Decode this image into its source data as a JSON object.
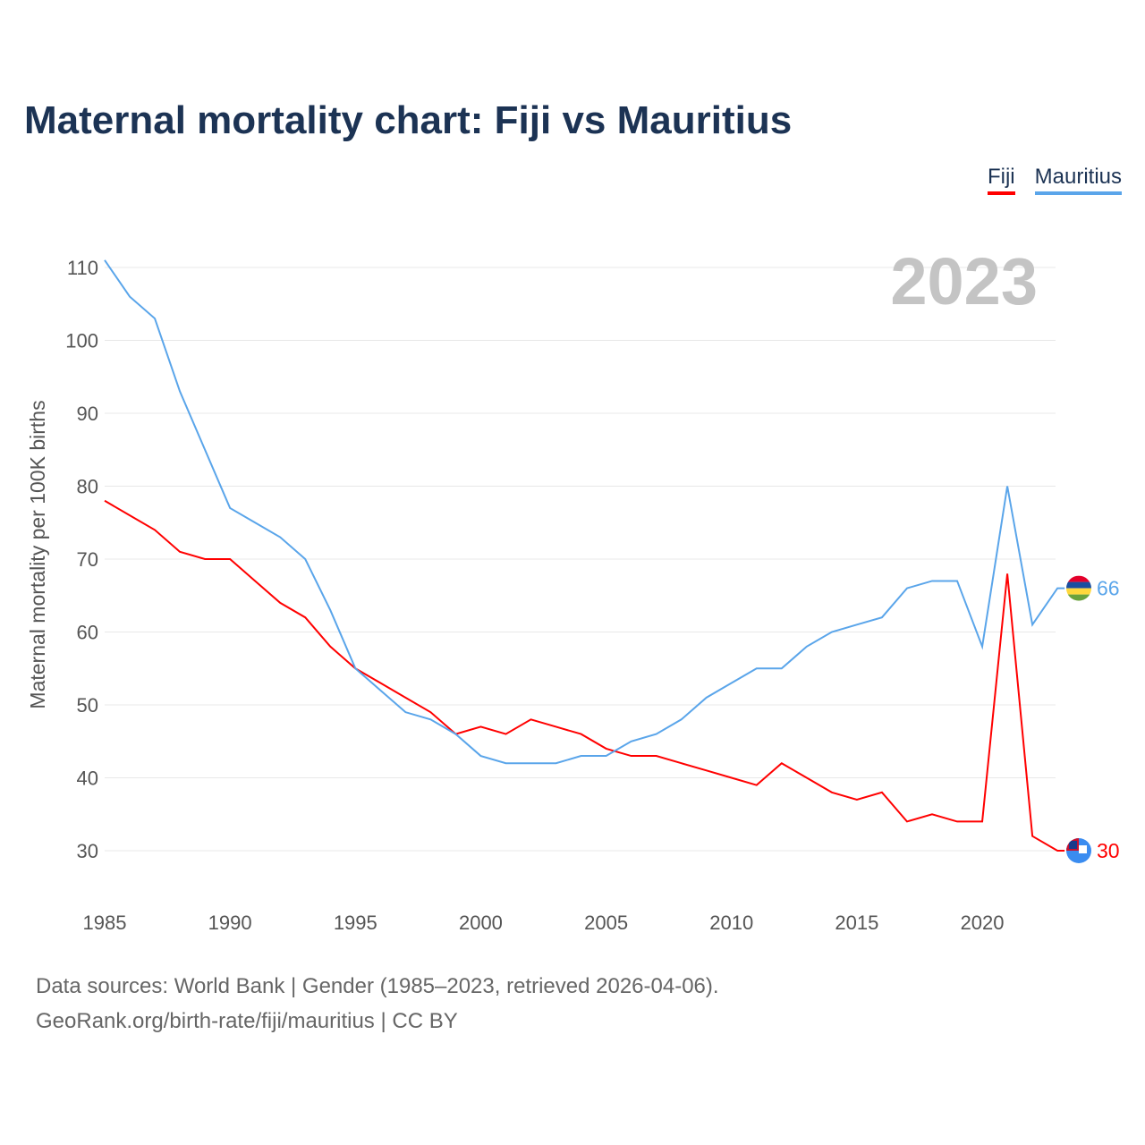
{
  "title": "Maternal mortality chart: Fiji vs Mauritius",
  "footer": {
    "line1": "Data sources: World Bank | Gender (1985–2023, retrieved 2026-04-06).",
    "line2": "GeoRank.org/birth-rate/fiji/mauritius | CC BY"
  },
  "chart_data": {
    "type": "line",
    "title": "Maternal mortality chart: Fiji vs Mauritius",
    "ylabel": "Maternal mortality per 100K births",
    "xlabel": "",
    "year_label": "2023",
    "ylim": [
      25,
      113
    ],
    "xlim": [
      1985,
      2023
    ],
    "yticks": [
      30,
      40,
      50,
      60,
      70,
      80,
      90,
      100,
      110
    ],
    "xticks": [
      1985,
      1990,
      1995,
      2000,
      2005,
      2010,
      2015,
      2020
    ],
    "grid": true,
    "legend_position": "top-right",
    "x": [
      1985,
      1986,
      1987,
      1988,
      1989,
      1990,
      1991,
      1992,
      1993,
      1994,
      1995,
      1996,
      1997,
      1998,
      1999,
      2000,
      2001,
      2002,
      2003,
      2004,
      2005,
      2006,
      2007,
      2008,
      2009,
      2010,
      2011,
      2012,
      2013,
      2014,
      2015,
      2016,
      2017,
      2018,
      2019,
      2020,
      2021,
      2022,
      2023
    ],
    "series": [
      {
        "name": "Fiji",
        "color": "#ff0000",
        "end_label": "30",
        "values": [
          78,
          76,
          74,
          71,
          70,
          70,
          67,
          64,
          62,
          58,
          55,
          53,
          51,
          49,
          46,
          47,
          46,
          48,
          47,
          46,
          44,
          43,
          43,
          42,
          41,
          40,
          39,
          42,
          40,
          38,
          37,
          38,
          34,
          35,
          34,
          34,
          68,
          32,
          30
        ]
      },
      {
        "name": "Mauritius",
        "color": "#5aa5ea",
        "end_label": "66",
        "values": [
          111,
          106,
          103,
          93,
          85,
          77,
          75,
          73,
          70,
          63,
          55,
          52,
          49,
          48,
          46,
          43,
          42,
          42,
          42,
          43,
          43,
          45,
          46,
          48,
          51,
          53,
          55,
          55,
          58,
          60,
          61,
          62,
          66,
          67,
          67,
          58,
          80,
          61,
          66
        ]
      }
    ]
  }
}
